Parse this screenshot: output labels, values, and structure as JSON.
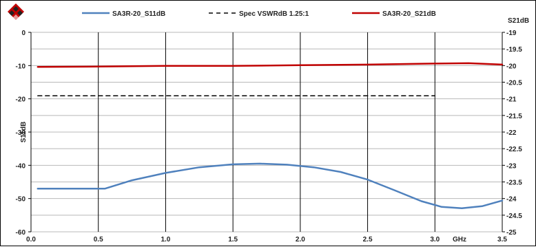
{
  "chart_data": {
    "type": "line",
    "title": "",
    "xlabel": "GHz",
    "ylabel": "S11dB",
    "y2label": "S21dB",
    "xlim": [
      0,
      3.5
    ],
    "ylim": [
      -60,
      0
    ],
    "y2lim": [
      -25,
      -19
    ],
    "x_ticks": [
      "0.0",
      "0.5",
      "1.0",
      "1.5",
      "2.0",
      "2.5",
      "3.0",
      "3.5"
    ],
    "y_ticks": [
      "0",
      "-10",
      "-20",
      "-30",
      "-40",
      "-50",
      "-60"
    ],
    "y2_ticks": [
      "-19",
      "-19.5",
      "-20",
      "-20.5",
      "-21",
      "-21.5",
      "-22",
      "-22.5",
      "-23",
      "-23.5",
      "-24",
      "-24.5",
      "-25"
    ],
    "grid": true,
    "legend_position": "top",
    "series": [
      {
        "name": "SA3R-20_S11dB",
        "axis": "left",
        "color": "#4f81bd",
        "style": "solid",
        "x": [
          0.05,
          0.3,
          0.55,
          0.75,
          1.0,
          1.25,
          1.5,
          1.7,
          1.9,
          2.1,
          2.3,
          2.5,
          2.7,
          2.9,
          3.05,
          3.2,
          3.35,
          3.5
        ],
        "y": [
          -47,
          -47,
          -47,
          -44.5,
          -42.3,
          -40.6,
          -39.7,
          -39.5,
          -39.8,
          -40.6,
          -42,
          -44.3,
          -47.5,
          -50.8,
          -52.5,
          -52.9,
          -52.3,
          -50.6
        ]
      },
      {
        "name": "Spec VSWRdB 1.25:1",
        "axis": "left",
        "color": "#000000",
        "style": "dashed",
        "x": [
          0.05,
          3.0
        ],
        "y": [
          -19.1,
          -19.1
        ]
      },
      {
        "name": "SA3R-20_S21dB",
        "axis": "right",
        "color": "#c00000",
        "style": "solid",
        "x": [
          0.05,
          0.5,
          1.0,
          1.5,
          2.0,
          2.5,
          3.0,
          3.25,
          3.5
        ],
        "y": [
          -20.04,
          -20.03,
          -20.01,
          -20.01,
          -19.99,
          -19.97,
          -19.94,
          -19.93,
          -19.97
        ]
      }
    ]
  },
  "logo": {
    "name": "company-logo",
    "colors": [
      "#c00000",
      "#000000"
    ]
  }
}
